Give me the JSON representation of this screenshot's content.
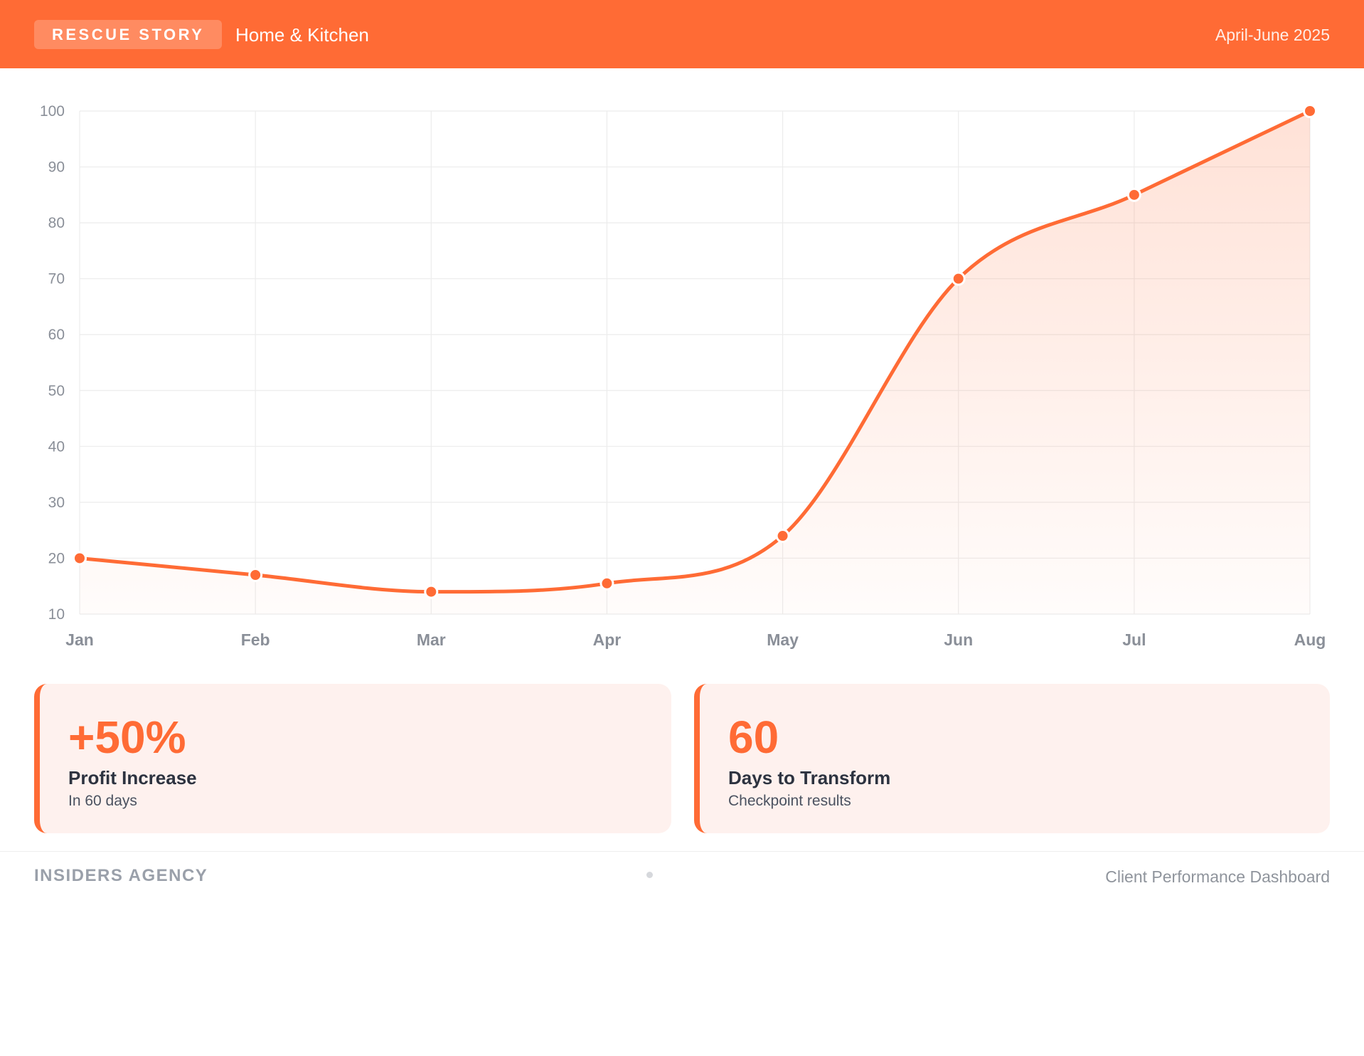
{
  "header": {
    "badge": "RESCUE STORY",
    "category": "Home & Kitchen",
    "period": "April-June 2025"
  },
  "chart_data": {
    "type": "area",
    "title": "",
    "xlabel": "",
    "ylabel": "",
    "categories": [
      "Jan",
      "Feb",
      "Mar",
      "Apr",
      "May",
      "Jun",
      "Jul",
      "Aug"
    ],
    "series": [
      {
        "values": [
          20,
          17,
          14,
          15.5,
          24,
          70,
          85,
          100
        ]
      }
    ],
    "ylim": [
      10,
      100
    ],
    "yticks": [
      10,
      20,
      30,
      40,
      50,
      60,
      70,
      80,
      90,
      100
    ],
    "grid": true,
    "legend": "none",
    "smooth": true,
    "colors": {
      "line": "#ff6b35",
      "fill": "#ff6b35",
      "grid": "#ececec",
      "tick": "#8a8f98"
    }
  },
  "cards": [
    {
      "value": "+50%",
      "label": "Profit Increase",
      "sub": "In 60 days"
    },
    {
      "value": "60",
      "label": "Days to Transform",
      "sub": "Checkpoint results"
    }
  ],
  "footer": {
    "brand": "INSIDERS AGENCY",
    "right": "Client Performance Dashboard"
  },
  "colors": {
    "accent": "#ff6b35",
    "card_bg": "#fef1ee",
    "text_dark": "#2d3340"
  }
}
